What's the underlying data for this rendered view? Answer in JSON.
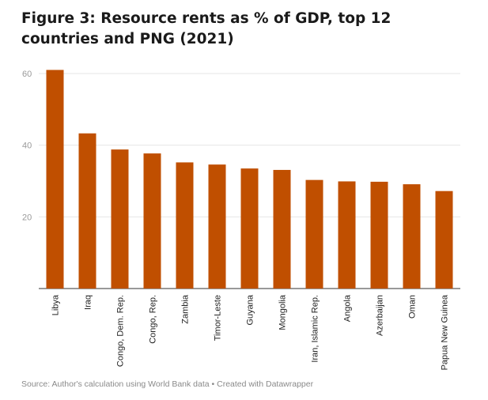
{
  "chart_data": {
    "type": "bar",
    "title": "Figure 3: Resource rents as % of GDP, top 12 countries and PNG (2021)",
    "xlabel": "",
    "ylabel": "",
    "ylim": [
      0,
      60
    ],
    "yticks": [
      20,
      40,
      60
    ],
    "grid": true,
    "bar_color": "#c04f00",
    "categories": [
      "Libya",
      "Iraq",
      "Congo, Dem. Rep.",
      "Congo, Rep.",
      "Zambia",
      "Timor-Leste",
      "Guyana",
      "Mongolia",
      "Iran, Islamic Rep.",
      "Angola",
      "Azerbaijan",
      "Oman",
      "Papua New Guinea"
    ],
    "values": [
      61,
      43.3,
      38.8,
      37.7,
      35.2,
      34.6,
      33.5,
      33.1,
      30.3,
      29.9,
      29.8,
      29.1,
      27.2
    ],
    "source": "Source: Author's calculation using World Bank data • Created with Datawrapper"
  }
}
